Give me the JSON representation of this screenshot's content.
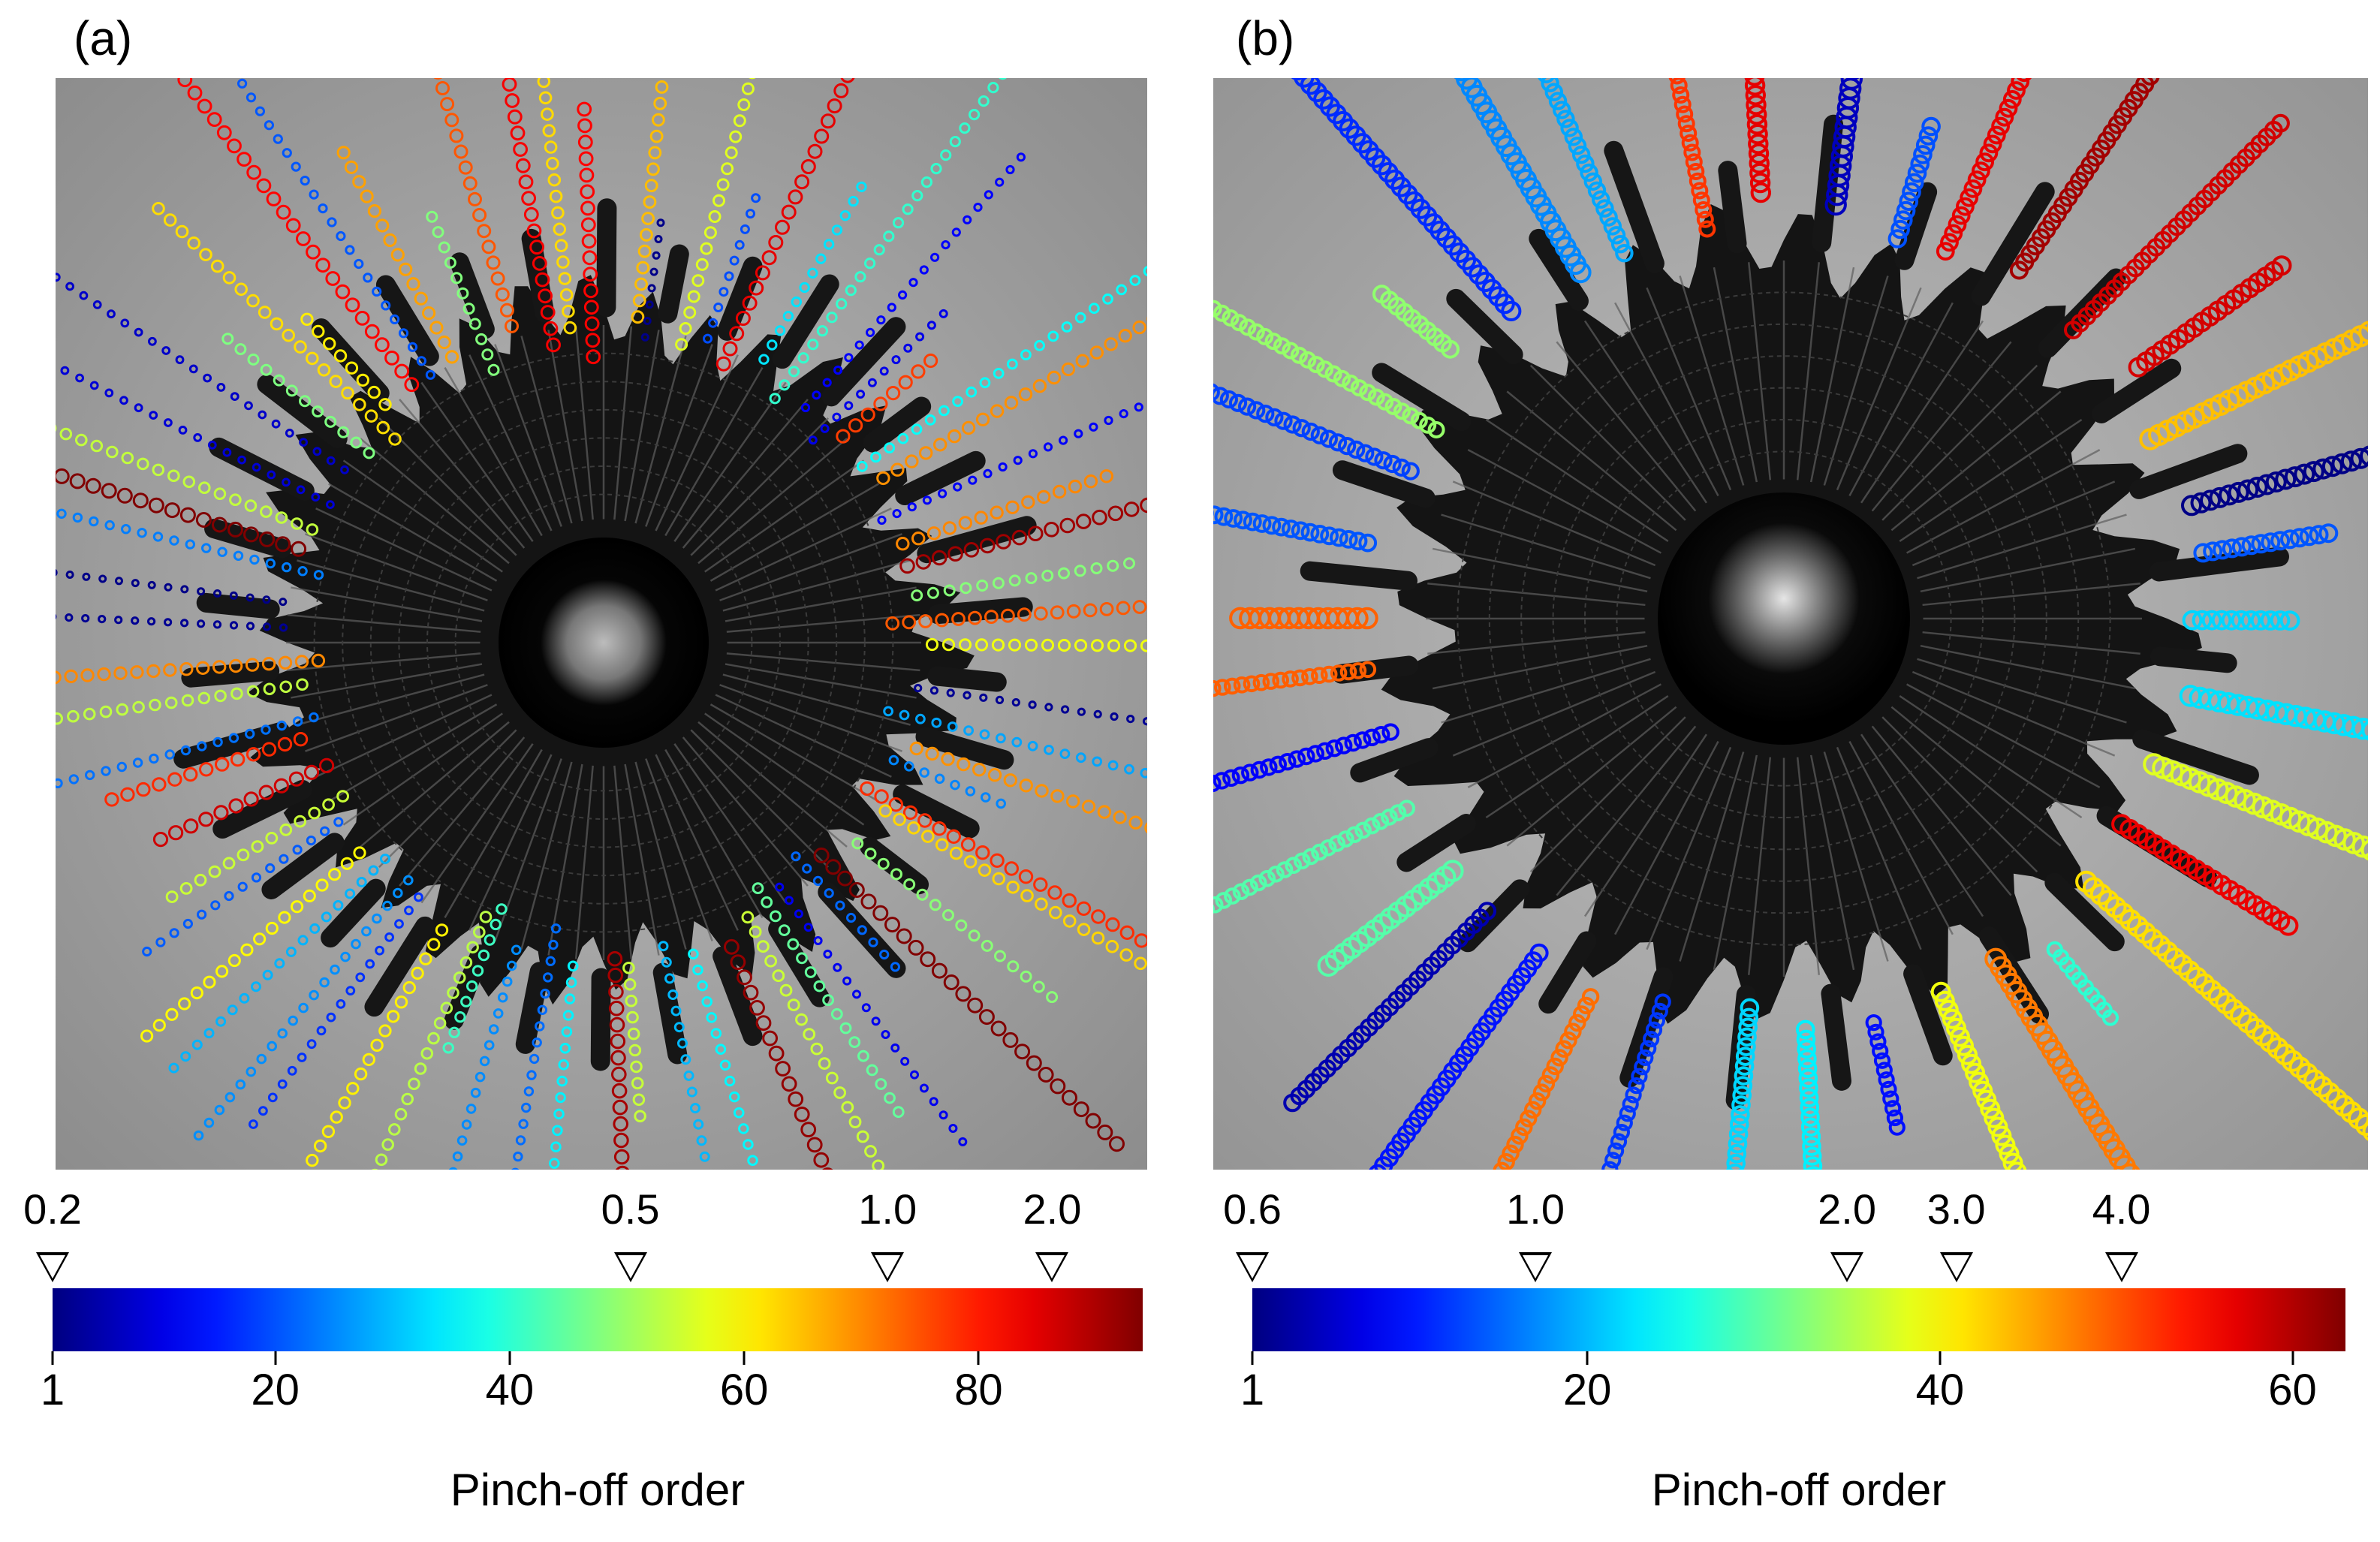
{
  "panels": [
    {
      "label": "(a)",
      "top_ticks": [
        "0.2",
        "0.5",
        "1.0",
        "2.0"
      ],
      "bottom_ticks": [
        "1",
        "20",
        "40",
        "60",
        "80"
      ],
      "bottom_max": 94,
      "colorbar_title": "Pinch-off order"
    },
    {
      "label": "(b)",
      "top_ticks": [
        "0.6",
        "1.0",
        "2.0",
        "3.0",
        "4.0"
      ],
      "bottom_ticks": [
        "1",
        "20",
        "40",
        "60"
      ],
      "bottom_max": 63,
      "colorbar_title": "Pinch-off order"
    }
  ],
  "colormap": "jet",
  "colors": {
    "bg": "#ffffff",
    "photo_bg": "#9a9a9a",
    "splash": "#121212"
  }
}
